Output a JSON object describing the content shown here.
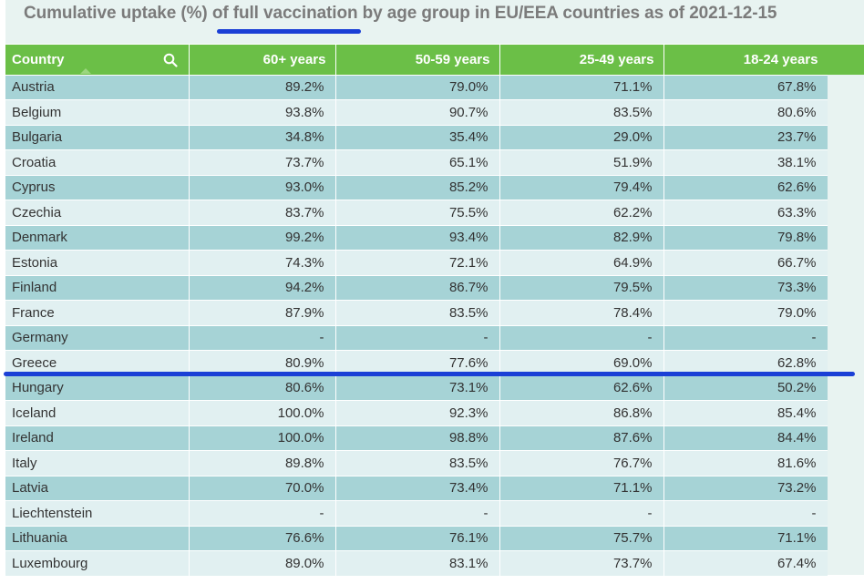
{
  "chart_data": {
    "type": "table",
    "title": "Cumulative uptake (%) of full vaccination by age group in EU/EEA countries as of 2021-12-15",
    "columns": [
      "Country",
      "60+ years",
      "50-59 years",
      "25-49 years",
      "18-24 years"
    ],
    "rows": [
      [
        "Austria",
        "89.2%",
        "79.0%",
        "71.1%",
        "67.8%"
      ],
      [
        "Belgium",
        "93.8%",
        "90.7%",
        "83.5%",
        "80.6%"
      ],
      [
        "Bulgaria",
        "34.8%",
        "35.4%",
        "29.0%",
        "23.7%"
      ],
      [
        "Croatia",
        "73.7%",
        "65.1%",
        "51.9%",
        "38.1%"
      ],
      [
        "Cyprus",
        "93.0%",
        "85.2%",
        "79.4%",
        "62.6%"
      ],
      [
        "Czechia",
        "83.7%",
        "75.5%",
        "62.2%",
        "63.3%"
      ],
      [
        "Denmark",
        "99.2%",
        "93.4%",
        "82.9%",
        "79.8%"
      ],
      [
        "Estonia",
        "74.3%",
        "72.1%",
        "64.9%",
        "66.7%"
      ],
      [
        "Finland",
        "94.2%",
        "86.7%",
        "79.5%",
        "73.3%"
      ],
      [
        "France",
        "87.9%",
        "83.5%",
        "78.4%",
        "79.0%"
      ],
      [
        "Germany",
        "-",
        "-",
        "-",
        "-"
      ],
      [
        "Greece",
        "80.9%",
        "77.6%",
        "69.0%",
        "62.8%"
      ],
      [
        "Hungary",
        "80.6%",
        "73.1%",
        "62.6%",
        "50.2%"
      ],
      [
        "Iceland",
        "100.0%",
        "92.3%",
        "86.8%",
        "85.4%"
      ],
      [
        "Ireland",
        "100.0%",
        "98.8%",
        "87.6%",
        "84.4%"
      ],
      [
        "Italy",
        "89.8%",
        "83.5%",
        "76.7%",
        "81.6%"
      ],
      [
        "Latvia",
        "70.0%",
        "73.4%",
        "71.1%",
        "73.2%"
      ],
      [
        "Liechtenstein",
        "-",
        "-",
        "-",
        "-"
      ],
      [
        "Lithuania",
        "76.6%",
        "76.1%",
        "75.7%",
        "71.1%"
      ],
      [
        "Luxembourg",
        "89.0%",
        "83.1%",
        "73.7%",
        "67.4%"
      ]
    ]
  },
  "colors": {
    "header_bg": "#6bbf47",
    "row_odd": "#a6d3d6",
    "row_even": "#e1f0f1",
    "title_text": "#7b7b7b",
    "highlight_line": "#1a3fd6"
  },
  "icons": {
    "search": "search-icon",
    "sort": "sort-up-icon"
  }
}
